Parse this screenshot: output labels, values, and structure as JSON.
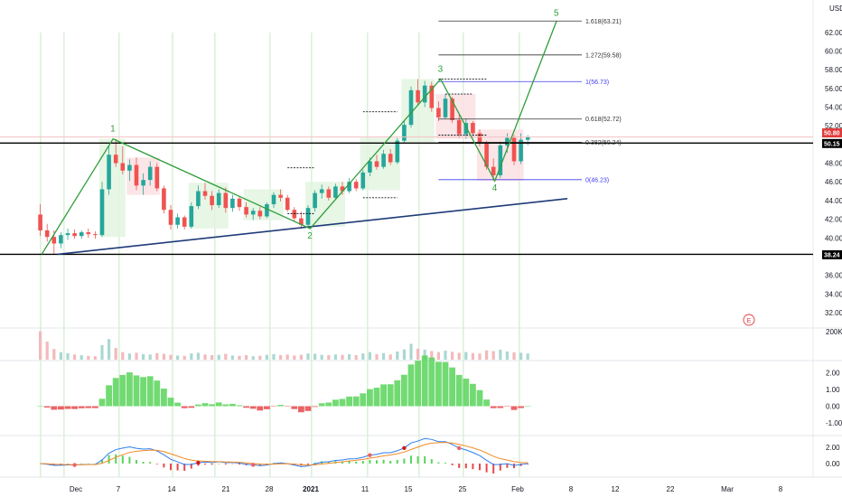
{
  "currency": "USD",
  "colors": {
    "up": "#26a69a",
    "down": "#ef5350",
    "wave": "#2e9e3a",
    "trend": "#1e3a78",
    "fibBlue": "#3d3df0",
    "red": "#e03a3a"
  },
  "price_axis": {
    "labels": [
      "62.00",
      "60.00",
      "58.00",
      "56.00",
      "54.00",
      "52.00",
      "50.00",
      "48.00",
      "46.00",
      "44.00",
      "42.00",
      "40.00",
      "38.00",
      "36.00",
      "34.00",
      "32.00"
    ]
  },
  "markers": {
    "current_price": "50.80",
    "resistance": "50.15",
    "support": "38.24"
  },
  "fib_levels": [
    {
      "label": "1.618(63.21)",
      "price": 63.21
    },
    {
      "label": "1.272(59.58)",
      "price": 59.58
    },
    {
      "label": "1(56.73)",
      "price": 56.73
    },
    {
      "label": "0.618(52.72)",
      "price": 52.72
    },
    {
      "label": "0.382(50.24)",
      "price": 50.24
    },
    {
      "label": "0(46.23)",
      "price": 46.23
    }
  ],
  "waves": [
    "1",
    "2",
    "3",
    "4",
    "5"
  ],
  "events_badge": "E",
  "volume_axis": {
    "label": "200K"
  },
  "osc1_axis": {
    "labels": [
      "2.00",
      "1.00",
      "0.00",
      "-1.00"
    ]
  },
  "osc2_axis": {
    "labels": [
      "2.00",
      "0.00"
    ]
  },
  "time_axis": {
    "labels": [
      "Dec",
      "7",
      "14",
      "21",
      "28",
      "2021",
      "11",
      "15",
      "25",
      "Feb",
      "8",
      "12",
      "22",
      "Mar",
      "8"
    ]
  },
  "chart_data": {
    "type": "candlestick",
    "y_unit": "USD",
    "ylim": [
      31.5,
      64.5
    ],
    "x": "trading days, Nov 30 2020 – Feb 3 2021, projection to Mar",
    "ohlc": [
      [
        42.5,
        43.6,
        40.2,
        40.8
      ],
      [
        40.8,
        41.5,
        39.6,
        40.1
      ],
      [
        40.1,
        40.8,
        38.3,
        39.4
      ],
      [
        39.4,
        40.6,
        38.9,
        40.3
      ],
      [
        40.3,
        41.0,
        39.8,
        40.5
      ],
      [
        40.5,
        40.9,
        39.9,
        40.2
      ],
      [
        40.2,
        40.8,
        39.9,
        40.6
      ],
      [
        40.6,
        41.0,
        40.0,
        40.4
      ],
      [
        40.4,
        40.7,
        39.9,
        40.3
      ],
      [
        40.3,
        46.0,
        40.1,
        45.2
      ],
      [
        45.2,
        49.8,
        44.6,
        48.9
      ],
      [
        48.9,
        50.6,
        47.6,
        48.0
      ],
      [
        48.0,
        49.8,
        46.8,
        47.2
      ],
      [
        47.2,
        48.4,
        46.1,
        47.8
      ],
      [
        47.8,
        48.6,
        45.1,
        45.6
      ],
      [
        45.6,
        46.9,
        44.6,
        46.2
      ],
      [
        46.2,
        48.2,
        45.6,
        47.6
      ],
      [
        47.6,
        48.0,
        45.0,
        45.3
      ],
      [
        45.3,
        45.6,
        42.6,
        43.0
      ],
      [
        43.0,
        43.5,
        40.9,
        41.4
      ],
      [
        41.4,
        42.6,
        41.0,
        42.2
      ],
      [
        42.2,
        42.4,
        40.9,
        41.2
      ],
      [
        41.2,
        43.8,
        41.0,
        43.4
      ],
      [
        43.4,
        45.6,
        43.1,
        45.0
      ],
      [
        45.0,
        45.9,
        44.1,
        44.5
      ],
      [
        44.5,
        45.0,
        43.0,
        43.5
      ],
      [
        43.5,
        45.2,
        43.2,
        44.8
      ],
      [
        44.8,
        45.4,
        42.7,
        43.2
      ],
      [
        43.2,
        44.6,
        42.8,
        44.2
      ],
      [
        44.2,
        44.5,
        42.9,
        43.3
      ],
      [
        43.3,
        43.8,
        42.2,
        42.5
      ],
      [
        42.5,
        43.2,
        41.9,
        42.9
      ],
      [
        42.9,
        43.3,
        42.0,
        42.3
      ],
      [
        42.3,
        43.8,
        42.1,
        43.6
      ],
      [
        43.6,
        44.9,
        43.2,
        44.6
      ],
      [
        44.6,
        45.2,
        43.9,
        44.3
      ],
      [
        44.3,
        44.6,
        42.8,
        43.0
      ],
      [
        43.0,
        43.3,
        41.8,
        42.1
      ],
      [
        42.1,
        42.8,
        41.0,
        41.4
      ],
      [
        41.4,
        43.5,
        41.2,
        43.2
      ],
      [
        43.2,
        45.1,
        42.8,
        44.8
      ],
      [
        44.8,
        45.7,
        44.2,
        45.2
      ],
      [
        45.2,
        45.5,
        44.0,
        44.3
      ],
      [
        44.3,
        45.8,
        44.1,
        45.5
      ],
      [
        45.5,
        46.0,
        44.6,
        45.0
      ],
      [
        45.0,
        46.4,
        44.8,
        46.0
      ],
      [
        46.0,
        46.3,
        45.0,
        45.3
      ],
      [
        45.3,
        47.3,
        45.1,
        47.0
      ],
      [
        47.0,
        48.6,
        46.6,
        48.2
      ],
      [
        48.2,
        48.9,
        47.3,
        47.6
      ],
      [
        47.6,
        49.4,
        47.4,
        49.0
      ],
      [
        49.0,
        49.5,
        47.8,
        48.1
      ],
      [
        48.1,
        50.7,
        47.9,
        50.4
      ],
      [
        50.4,
        52.6,
        50.1,
        52.1
      ],
      [
        52.1,
        56.2,
        51.8,
        55.8
      ],
      [
        55.8,
        57.0,
        54.2,
        54.5
      ],
      [
        54.5,
        56.8,
        54.0,
        56.3
      ],
      [
        56.3,
        56.7,
        53.5,
        53.9
      ],
      [
        53.9,
        54.6,
        52.5,
        52.9
      ],
      [
        52.9,
        55.4,
        52.7,
        54.9
      ],
      [
        54.9,
        55.1,
        52.3,
        52.6
      ],
      [
        52.6,
        53.2,
        50.7,
        51.1
      ],
      [
        51.1,
        52.8,
        50.6,
        52.3
      ],
      [
        52.3,
        52.5,
        50.9,
        51.2
      ],
      [
        51.2,
        51.6,
        49.8,
        50.1
      ],
      [
        50.1,
        50.4,
        47.3,
        47.6
      ],
      [
        47.6,
        48.5,
        46.1,
        46.7
      ],
      [
        46.7,
        50.3,
        46.4,
        49.9
      ],
      [
        49.9,
        51.2,
        49.1,
        50.7
      ],
      [
        50.7,
        51.0,
        47.8,
        48.2
      ],
      [
        48.2,
        51.2,
        47.9,
        50.5
      ],
      [
        50.5,
        51.0,
        49.9,
        50.8
      ]
    ],
    "volume_k": [
      165,
      105,
      62,
      44,
      38,
      30,
      26,
      22,
      20,
      85,
      120,
      68,
      44,
      36,
      40,
      32,
      30,
      38,
      34,
      28,
      24,
      22,
      36,
      40,
      30,
      26,
      28,
      34,
      24,
      22,
      26,
      20,
      22,
      28,
      32,
      26,
      30,
      24,
      28,
      36,
      34,
      28,
      26,
      30,
      28,
      32,
      26,
      36,
      44,
      32,
      38,
      30,
      48,
      60,
      92,
      64,
      58,
      50,
      44,
      52,
      46,
      40,
      44,
      38,
      36,
      54,
      50,
      58,
      48,
      42,
      40,
      36
    ],
    "fib_extension": [
      {
        "ratio": "1.618",
        "price": 63.21
      },
      {
        "ratio": "1.272",
        "price": 59.58
      },
      {
        "ratio": "1",
        "price": 56.73
      },
      {
        "ratio": "0.618",
        "price": 52.72
      },
      {
        "ratio": "0.382",
        "price": 50.24
      },
      {
        "ratio": "0",
        "price": 46.23
      }
    ],
    "waves": [
      {
        "label": "1",
        "price": 50.6
      },
      {
        "label": "2",
        "price": 41.0
      },
      {
        "label": "3",
        "price": 57.0
      },
      {
        "label": "4",
        "price": 46.1
      },
      {
        "label": "5",
        "price": 63.2
      }
    ],
    "horizontal_lines": [
      50.15,
      38.24
    ],
    "current_price": 50.8
  }
}
